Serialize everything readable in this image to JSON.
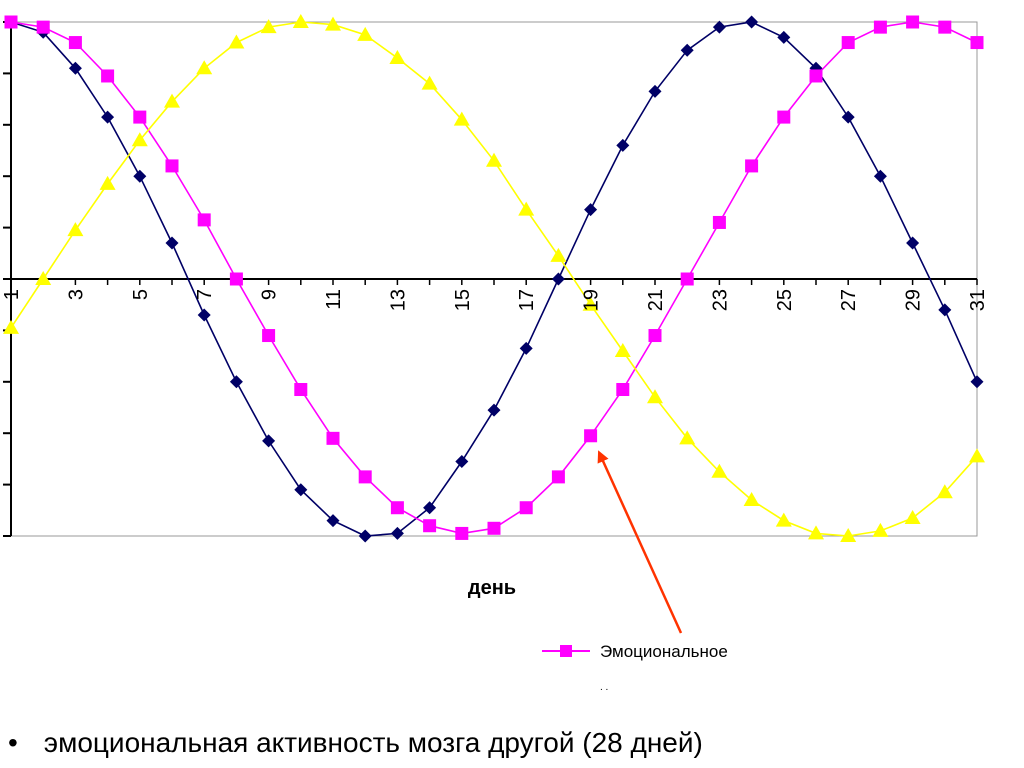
{
  "chart_data": {
    "type": "line",
    "xlabel": "день",
    "ylabel": "",
    "xlim": [
      1,
      31
    ],
    "ylim": [
      -1,
      1
    ],
    "x_tick_labels": [
      "1",
      "3",
      "5",
      "7",
      "9",
      "11",
      "13",
      "15",
      "17",
      "19",
      "21",
      "23",
      "25",
      "27",
      "29",
      "31"
    ],
    "grid": false,
    "series": [
      {
        "key": "physical",
        "name": "",
        "color": "#000066",
        "marker": "diamond",
        "period_days": 23,
        "x": [
          1,
          2,
          3,
          4,
          5,
          6,
          7,
          8,
          9,
          10,
          11,
          12,
          13,
          14,
          15,
          16,
          17,
          18,
          19,
          20,
          21,
          22,
          23,
          24,
          25,
          26,
          27,
          28,
          29,
          30,
          31
        ],
        "values": [
          1.0,
          0.96,
          0.82,
          0.63,
          0.4,
          0.14,
          -0.14,
          -0.4,
          -0.63,
          -0.82,
          -0.94,
          -1.0,
          -0.99,
          -0.89,
          -0.71,
          -0.51,
          -0.27,
          0.0,
          0.27,
          0.52,
          0.73,
          0.89,
          0.98,
          1.0,
          0.94,
          0.82,
          0.63,
          0.4,
          0.14,
          -0.12,
          -0.4
        ]
      },
      {
        "key": "emotional",
        "name": "Эмоциональное",
        "color": "#ff00ff",
        "marker": "square",
        "period_days": 28,
        "x": [
          1,
          2,
          3,
          4,
          5,
          6,
          7,
          8,
          9,
          10,
          11,
          12,
          13,
          14,
          15,
          16,
          17,
          18,
          19,
          20,
          21,
          22,
          23,
          24,
          25,
          26,
          27,
          28,
          29,
          30,
          31
        ],
        "values": [
          1.0,
          0.98,
          0.92,
          0.79,
          0.63,
          0.44,
          0.23,
          0.0,
          -0.22,
          -0.43,
          -0.62,
          -0.77,
          -0.89,
          -0.96,
          -0.99,
          -0.97,
          -0.89,
          -0.77,
          -0.61,
          -0.43,
          -0.22,
          0.0,
          0.22,
          0.44,
          0.63,
          0.79,
          0.92,
          0.98,
          1.0,
          0.98,
          0.92
        ]
      },
      {
        "key": "intellectual",
        "name": "",
        "color": "#ffff00",
        "marker": "triangle",
        "period_days": 33,
        "x": [
          1,
          2,
          3,
          4,
          5,
          6,
          7,
          8,
          9,
          10,
          11,
          12,
          13,
          14,
          15,
          16,
          17,
          18,
          19,
          20,
          21,
          22,
          23,
          24,
          25,
          26,
          27,
          28,
          29,
          30,
          31
        ],
        "values": [
          -0.19,
          0.0,
          0.19,
          0.37,
          0.54,
          0.69,
          0.82,
          0.92,
          0.98,
          1.0,
          0.99,
          0.95,
          0.86,
          0.76,
          0.62,
          0.46,
          0.27,
          0.09,
          -0.1,
          -0.28,
          -0.46,
          -0.62,
          -0.75,
          -0.86,
          -0.94,
          -0.99,
          -1.0,
          -0.98,
          -0.93,
          -0.83,
          -0.69
        ]
      }
    ],
    "legend": {
      "placement": "bottom-right",
      "visible_entries": [
        "Эмоциональное"
      ]
    },
    "annotation": {
      "type": "arrow",
      "color": "#ff3300",
      "points_to": {
        "series": "emotional",
        "x": 19,
        "y": -0.61
      }
    }
  },
  "bullet": {
    "symbol": "•",
    "text": "эмоциональная активность мозга другой (28 дней)"
  }
}
